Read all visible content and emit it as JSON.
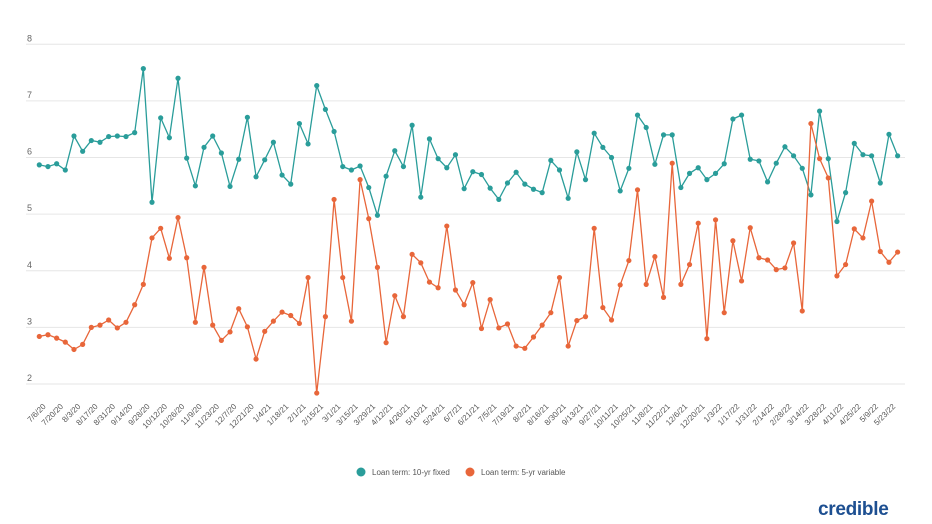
{
  "chart_data": {
    "type": "line",
    "title": "",
    "xlabel": "",
    "ylabel": "",
    "ylim": [
      2,
      8
    ],
    "yticks": [
      2,
      3,
      4,
      5,
      6,
      7,
      8
    ],
    "grid": true,
    "legend_position": "bottom",
    "x_tick_labels": [
      "7/6/20",
      "7/20/20",
      "8/3/20",
      "8/17/20",
      "8/31/20",
      "9/14/20",
      "9/28/20",
      "10/12/20",
      "10/26/20",
      "11/9/20",
      "11/23/20",
      "12/7/20",
      "12/21/20",
      "1/4/21",
      "1/18/21",
      "2/1/21",
      "2/15/21",
      "3/1/21",
      "3/15/21",
      "3/29/21",
      "4/12/21",
      "4/26/21",
      "5/10/21",
      "5/24/21",
      "6/7/21",
      "6/21/21",
      "7/5/21",
      "7/19/21",
      "8/2/21",
      "8/16/21",
      "8/30/21",
      "9/13/21",
      "9/27/21",
      "10/11/21",
      "10/25/21",
      "11/8/21",
      "11/22/21",
      "12/6/21",
      "12/20/21",
      "1/3/22",
      "1/17/22",
      "1/31/22",
      "2/14/22",
      "2/28/22",
      "3/14/22",
      "3/28/22",
      "4/11/22",
      "4/25/22",
      "5/9/22",
      "5/23/22"
    ],
    "series": [
      {
        "name": "Loan term: 10-yr fixed",
        "color": "#2a9d9a",
        "values": [
          5.87,
          5.84,
          5.89,
          5.78,
          6.38,
          6.11,
          6.3,
          6.27,
          6.37,
          6.38,
          6.37,
          6.44,
          7.57,
          5.21,
          6.7,
          6.35,
          7.4,
          5.99,
          5.5,
          6.18,
          6.38,
          6.08,
          5.49,
          5.97,
          6.71,
          5.66,
          5.96,
          6.27,
          5.69,
          5.53,
          6.6,
          6.24,
          7.27,
          6.85,
          6.46,
          5.84,
          5.78,
          5.85,
          5.47,
          4.98,
          5.67,
          6.12,
          5.84,
          6.57,
          5.3,
          6.33,
          5.98,
          5.82,
          6.05,
          5.45,
          5.75,
          5.7,
          5.46,
          5.26,
          5.55,
          5.74,
          5.53,
          5.44,
          5.38,
          5.95,
          5.78,
          5.28,
          6.1,
          5.61,
          6.43,
          6.18,
          6.0,
          5.41,
          5.81,
          6.75,
          6.53,
          5.88,
          6.4,
          6.4,
          5.47,
          5.72,
          5.82,
          5.61,
          5.72,
          5.89,
          6.68,
          6.75,
          5.97,
          5.94,
          5.57,
          5.9,
          6.19,
          6.03,
          5.81,
          5.34,
          6.82,
          5.98,
          4.87,
          5.38,
          6.25,
          6.05,
          6.03,
          5.55,
          6.41,
          6.03
        ]
      },
      {
        "name": "Loan term: 5-yr variable",
        "color": "#e8663a",
        "values": [
          2.84,
          2.87,
          2.81,
          2.74,
          2.61,
          2.7,
          3.0,
          3.04,
          3.13,
          2.99,
          3.09,
          3.4,
          3.76,
          4.58,
          4.75,
          4.22,
          4.94,
          4.23,
          3.09,
          4.06,
          3.04,
          2.77,
          2.92,
          3.33,
          3.01,
          2.44,
          2.93,
          3.11,
          3.27,
          3.21,
          3.07,
          3.88,
          1.84,
          3.19,
          5.26,
          3.88,
          3.11,
          5.61,
          4.92,
          4.06,
          2.73,
          3.56,
          3.19,
          4.29,
          4.14,
          3.8,
          3.7,
          4.79,
          3.66,
          3.4,
          3.79,
          2.98,
          3.49,
          2.99,
          3.06,
          2.67,
          2.63,
          2.83,
          3.04,
          3.26,
          3.88,
          2.67,
          3.12,
          3.19,
          4.75,
          3.35,
          3.13,
          3.75,
          4.18,
          5.43,
          3.76,
          4.25,
          3.53,
          5.9,
          3.76,
          4.11,
          4.84,
          2.8,
          4.9,
          3.26,
          4.53,
          3.82,
          4.76,
          4.23,
          4.19,
          4.02,
          4.05,
          4.49,
          3.29,
          6.6,
          5.98,
          5.64,
          3.91,
          4.11,
          4.74,
          4.58,
          5.23,
          4.34,
          4.15,
          4.33
        ]
      }
    ]
  },
  "logo": {
    "text": "credible",
    "color": "#1d4f91"
  }
}
